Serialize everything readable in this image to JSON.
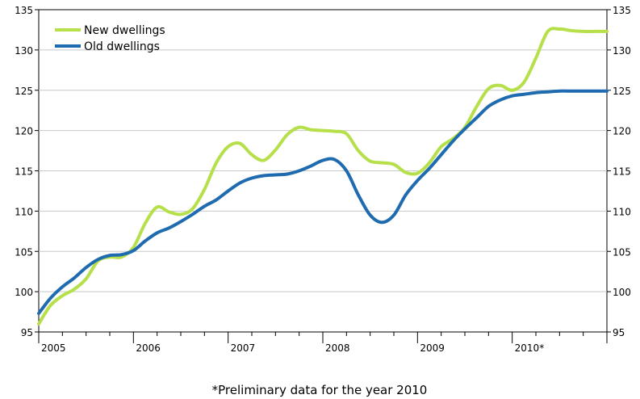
{
  "chart_data": {
    "type": "line",
    "title": "",
    "xlabel": "",
    "ylabel": "",
    "footnote": "*Preliminary data for the year 2010",
    "ylim": [
      95,
      135
    ],
    "yticks": [
      "95",
      "100",
      "105",
      "110",
      "115",
      "120",
      "125",
      "130",
      "135"
    ],
    "xlim": [
      0,
      24
    ],
    "xticks": [
      {
        "label": "2005",
        "x": 0
      },
      {
        "label": "2006",
        "x": 4
      },
      {
        "label": "2007",
        "x": 8
      },
      {
        "label": "2008",
        "x": 12
      },
      {
        "label": "2009",
        "x": 16
      },
      {
        "label": "2010*",
        "x": 20
      }
    ],
    "grid": true,
    "legend_position": "top-left",
    "series": [
      {
        "name": "New dwellings",
        "color": "#b5e04a",
        "x": [
          0,
          0.5,
          1,
          1.5,
          2,
          2.5,
          3,
          3.5,
          4,
          4.5,
          5,
          5.5,
          6,
          6.5,
          7,
          7.5,
          8,
          8.5,
          9,
          9.5,
          10,
          10.5,
          11,
          11.5,
          12,
          12.5,
          13,
          13.5,
          14,
          14.5,
          15,
          15.5,
          16,
          16.5,
          17,
          17.5,
          18,
          18.5,
          19,
          19.5,
          20,
          20.5,
          21,
          21.5,
          22,
          22.5,
          23,
          23.5,
          24
        ],
        "y": [
          96.0,
          98.3,
          99.5,
          100.3,
          101.6,
          103.8,
          104.3,
          104.3,
          105.5,
          108.5,
          110.5,
          109.9,
          109.6,
          110.3,
          112.7,
          116.0,
          118.0,
          118.4,
          117.0,
          116.3,
          117.6,
          119.5,
          120.4,
          120.1,
          120.0,
          119.9,
          119.6,
          117.5,
          116.2,
          116.0,
          115.8,
          114.8,
          114.7,
          116.0,
          118.0,
          119.0,
          120.4,
          123.0,
          125.2,
          125.6,
          125.0,
          126.0,
          129.0,
          132.3,
          132.6,
          132.4,
          132.3,
          132.3,
          132.3
        ]
      },
      {
        "name": "Old dwellings",
        "color": "#1f6bb0",
        "x": [
          0,
          0.5,
          1,
          1.5,
          2,
          2.5,
          3,
          3.5,
          4,
          4.5,
          5,
          5.5,
          6,
          6.5,
          7,
          7.5,
          8,
          8.5,
          9,
          9.5,
          10,
          10.5,
          11,
          11.5,
          12,
          12.5,
          13,
          13.5,
          14,
          14.5,
          15,
          15.5,
          16,
          16.5,
          17,
          17.5,
          18,
          18.5,
          19,
          19.5,
          20,
          20.5,
          21,
          21.5,
          22,
          22.5,
          23,
          23.5,
          24
        ],
        "y": [
          97.3,
          99.2,
          100.6,
          101.7,
          103.0,
          104.0,
          104.5,
          104.6,
          105.1,
          106.3,
          107.3,
          107.9,
          108.7,
          109.6,
          110.6,
          111.4,
          112.5,
          113.5,
          114.1,
          114.4,
          114.5,
          114.6,
          115.0,
          115.6,
          116.3,
          116.4,
          115.0,
          112.0,
          109.5,
          108.6,
          109.5,
          112.0,
          113.8,
          115.3,
          117.0,
          118.7,
          120.2,
          121.6,
          123.0,
          123.8,
          124.3,
          124.5,
          124.7,
          124.8,
          124.9,
          124.9,
          124.9,
          124.9,
          124.9
        ]
      }
    ]
  }
}
